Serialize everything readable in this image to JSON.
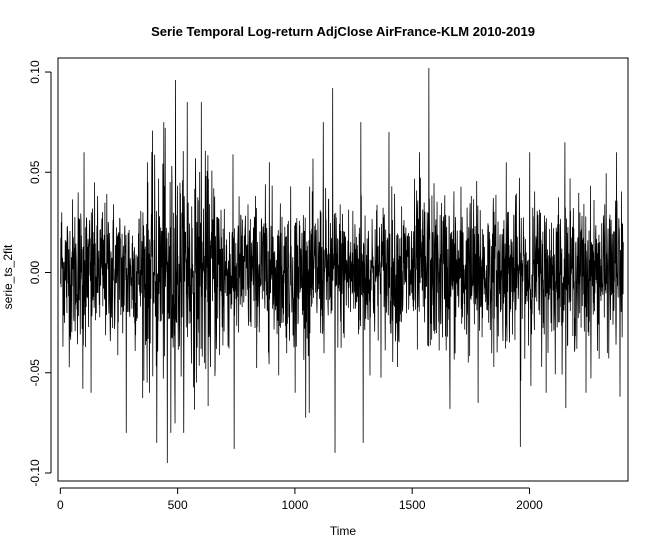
{
  "chart_data": {
    "type": "line",
    "title": "Serie Temporal Log-return AdjClose AirFrance-KLM 2010-2019",
    "xlabel": "Time",
    "ylabel": "serie_ts_2fit",
    "xlim": [
      -10,
      2420
    ],
    "ylim": [
      -0.104,
      0.107
    ],
    "xticks": [
      0,
      500,
      1000,
      1500,
      2000
    ],
    "xtick_labels": [
      "0",
      "500",
      "1000",
      "1500",
      "2000"
    ],
    "yticks": [
      -0.1,
      -0.05,
      0.0,
      0.05,
      0.1
    ],
    "ytick_labels": [
      "-0.10",
      "-0.05",
      "0.00",
      "0.05",
      "0.10"
    ],
    "grid": false,
    "n_points": 2400,
    "series": [
      {
        "color": "#000000",
        "spikes": [
          {
            "x": 5,
            "y": 0.03
          },
          {
            "x": 75,
            "y": 0.04
          },
          {
            "x": 100,
            "y": 0.06
          },
          {
            "x": 95,
            "y": -0.058
          },
          {
            "x": 130,
            "y": -0.06
          },
          {
            "x": 280,
            "y": -0.08
          },
          {
            "x": 370,
            "y": 0.055
          },
          {
            "x": 410,
            "y": -0.085
          },
          {
            "x": 440,
            "y": 0.075
          },
          {
            "x": 455,
            "y": -0.095
          },
          {
            "x": 470,
            "y": -0.08
          },
          {
            "x": 490,
            "y": 0.096
          },
          {
            "x": 540,
            "y": 0.085
          },
          {
            "x": 600,
            "y": 0.085
          },
          {
            "x": 740,
            "y": -0.088
          },
          {
            "x": 890,
            "y": 0.055
          },
          {
            "x": 1000,
            "y": -0.06
          },
          {
            "x": 1060,
            "y": -0.07
          },
          {
            "x": 1120,
            "y": 0.075
          },
          {
            "x": 1160,
            "y": 0.092
          },
          {
            "x": 1170,
            "y": -0.09
          },
          {
            "x": 1280,
            "y": 0.075
          },
          {
            "x": 1290,
            "y": -0.085
          },
          {
            "x": 1400,
            "y": 0.07
          },
          {
            "x": 1530,
            "y": 0.06
          },
          {
            "x": 1570,
            "y": 0.102
          },
          {
            "x": 1660,
            "y": -0.068
          },
          {
            "x": 1780,
            "y": -0.065
          },
          {
            "x": 1900,
            "y": 0.055
          },
          {
            "x": 1960,
            "y": -0.087
          },
          {
            "x": 2000,
            "y": 0.06
          },
          {
            "x": 2070,
            "y": -0.06
          },
          {
            "x": 2150,
            "y": 0.065
          },
          {
            "x": 2240,
            "y": -0.06
          },
          {
            "x": 2370,
            "y": 0.06
          },
          {
            "x": 2385,
            "y": -0.062
          }
        ]
      }
    ]
  }
}
